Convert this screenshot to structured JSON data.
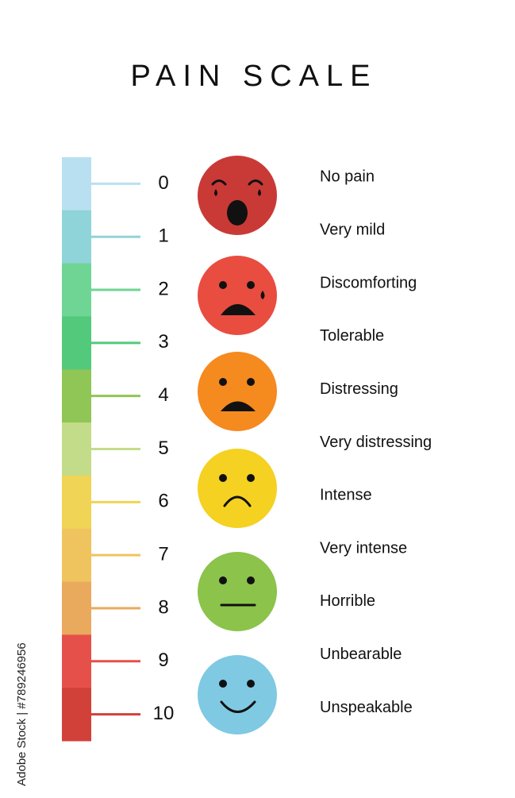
{
  "title": "PAIN SCALE",
  "watermark": "Adobe Stock | #789246956",
  "levels": [
    {
      "number": "0",
      "label": "No pain",
      "color": "#b9e0f0"
    },
    {
      "number": "1",
      "label": "Very mild",
      "color": "#8fd4d8"
    },
    {
      "number": "2",
      "label": "Discomforting",
      "color": "#6fd594"
    },
    {
      "number": "3",
      "label": "Tolerable",
      "color": "#52c97b"
    },
    {
      "number": "4",
      "label": "Distressing",
      "color": "#8fc655"
    },
    {
      "number": "5",
      "label": "Very distressing",
      "color": "#c3dc89"
    },
    {
      "number": "6",
      "label": "Intense",
      "color": "#efd455"
    },
    {
      "number": "7",
      "label": "Very intense",
      "color": "#efc45f"
    },
    {
      "number": "8",
      "label": "Horrible",
      "color": "#e9aa5d"
    },
    {
      "number": "9",
      "label": "Unbearable",
      "color": "#e6504a"
    },
    {
      "number": "10",
      "label": "Unspeakable",
      "color": "#d2403a"
    }
  ]
}
